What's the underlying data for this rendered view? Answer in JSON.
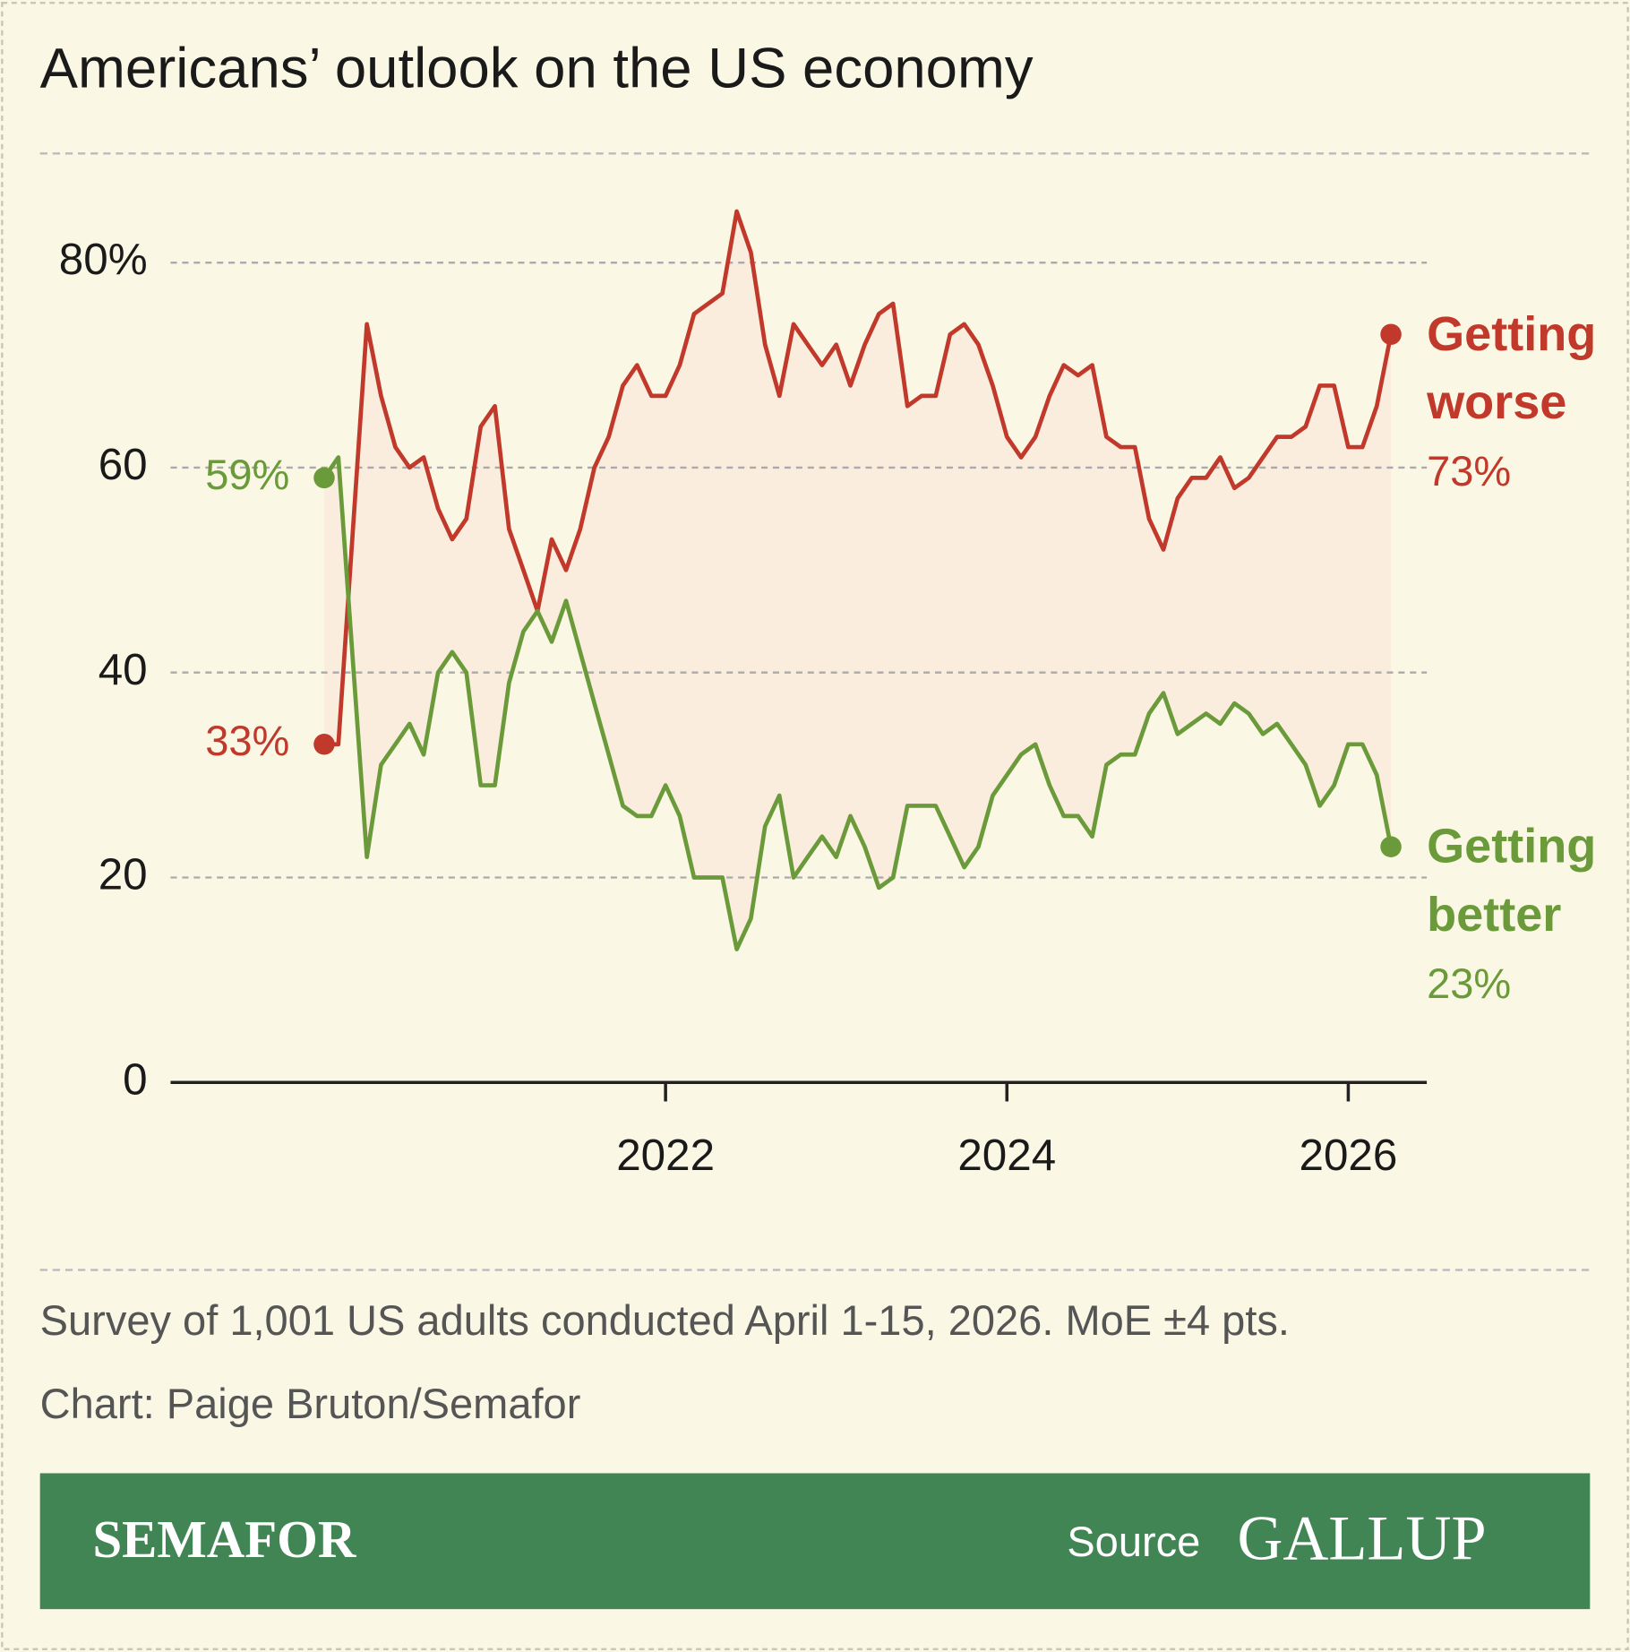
{
  "chart_data": {
    "type": "line",
    "title": "Americans’ outlook on the US economy",
    "x": [
      2020,
      2020.083,
      2020.25,
      2020.333,
      2020.417,
      2020.5,
      2020.583,
      2020.667,
      2020.75,
      2020.833,
      2020.917,
      2021,
      2021.083,
      2021.167,
      2021.25,
      2021.333,
      2021.417,
      2021.5,
      2021.583,
      2021.667,
      2021.75,
      2021.833,
      2021.917,
      2022,
      2022.083,
      2022.167,
      2022.25,
      2022.333,
      2022.417,
      2022.5,
      2022.583,
      2022.667,
      2022.75,
      2022.833,
      2022.917,
      2023,
      2023.083,
      2023.167,
      2023.25,
      2023.333,
      2023.417,
      2023.5,
      2023.583,
      2023.667,
      2023.75,
      2023.833,
      2023.917,
      2024,
      2024.083,
      2024.167,
      2024.25,
      2024.333,
      2024.417,
      2024.5,
      2024.583,
      2024.667,
      2024.75,
      2024.833,
      2024.917,
      2025,
      2025.083,
      2025.167,
      2025.25,
      2025.333,
      2025.417,
      2025.5,
      2025.583,
      2025.667,
      2025.75,
      2025.833,
      2025.917,
      2026,
      2026.083,
      2026.167,
      2026.25
    ],
    "series": [
      {
        "name": "Getting worse",
        "color": "#c0392b",
        "values": [
          33,
          33,
          74,
          67,
          62,
          60,
          61,
          56,
          53,
          55,
          64,
          66,
          54,
          50,
          46,
          53,
          50,
          54,
          60,
          63,
          68,
          70,
          67,
          67,
          70,
          75,
          76,
          77,
          85,
          81,
          72,
          67,
          74,
          72,
          70,
          72,
          68,
          72,
          75,
          76,
          66,
          67,
          67,
          73,
          74,
          72,
          68,
          63,
          61,
          63,
          67,
          70,
          69,
          70,
          63,
          62,
          62,
          55,
          52,
          57,
          59,
          59,
          61,
          58,
          59,
          61,
          63,
          63,
          64,
          68,
          68,
          62,
          62,
          66,
          73
        ],
        "value_labels": [
          "33%",
          null,
          null,
          null,
          null,
          null,
          null,
          null,
          null,
          null,
          null,
          null,
          null,
          null,
          null,
          null,
          null,
          null,
          null,
          null,
          null,
          null,
          null,
          null,
          null,
          null,
          null,
          null,
          null,
          null,
          null,
          null,
          null,
          null,
          null,
          null,
          null,
          null,
          null,
          null,
          null,
          null,
          null,
          null,
          null,
          null,
          null,
          null,
          null,
          null,
          null,
          null,
          null,
          null,
          null,
          null,
          null,
          null,
          null,
          null,
          null,
          null,
          null,
          null,
          null,
          null,
          null,
          null,
          null,
          null,
          null,
          null,
          null,
          null,
          "73%"
        ]
      },
      {
        "name": "Getting better",
        "color": "#6b9a3a",
        "values": [
          59,
          61,
          22,
          31,
          33,
          35,
          32,
          40,
          42,
          40,
          29,
          29,
          39,
          44,
          46,
          43,
          47,
          42,
          37,
          32,
          27,
          26,
          26,
          29,
          26,
          20,
          20,
          20,
          13,
          16,
          25,
          28,
          20,
          22,
          24,
          22,
          26,
          23,
          19,
          20,
          27,
          27,
          27,
          24,
          21,
          23,
          28,
          30,
          32,
          33,
          29,
          26,
          26,
          24,
          31,
          32,
          32,
          36,
          38,
          34,
          35,
          36,
          35,
          37,
          36,
          34,
          35,
          33,
          31,
          27,
          29,
          33,
          33,
          30,
          23
        ],
        "value_labels": [
          "59%",
          null,
          null,
          null,
          null,
          null,
          null,
          null,
          null,
          null,
          null,
          null,
          null,
          null,
          null,
          null,
          null,
          null,
          null,
          null,
          null,
          null,
          null,
          null,
          null,
          null,
          null,
          null,
          null,
          null,
          null,
          null,
          null,
          null,
          null,
          null,
          null,
          null,
          null,
          null,
          null,
          null,
          null,
          null,
          null,
          null,
          null,
          null,
          null,
          null,
          null,
          null,
          null,
          null,
          null,
          null,
          null,
          null,
          null,
          null,
          null,
          null,
          null,
          null,
          null,
          null,
          null,
          null,
          null,
          null,
          null,
          null,
          null,
          null,
          "23%"
        ]
      }
    ],
    "xlim": [
      2019.1,
      2026.46
    ],
    "xticks": [
      2022,
      2024,
      2026
    ],
    "ylim": [
      0,
      85
    ],
    "yticks": [
      0,
      20,
      40,
      60,
      {
        "value": 80,
        "label": "80%"
      }
    ],
    "grid": true
  },
  "note": "Survey of 1,001 US adults conducted April 1-15, 2026. MoE ±4 pts.",
  "credit": "Chart: Paige Bruton/Semafor",
  "footer": {
    "brand": "SEMAFOR",
    "source_label": "Source",
    "source": "GALLUP"
  }
}
